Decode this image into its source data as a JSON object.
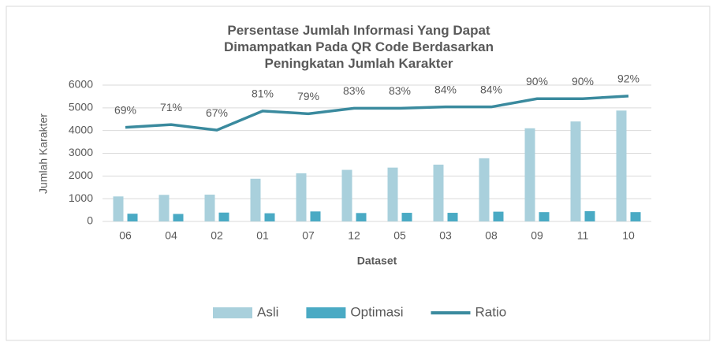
{
  "chart_data": {
    "type": "bar",
    "title": "Persentase Jumlah Informasi Yang Dapat Dimampatkan Pada QR Code Berdasarkan Peningkatan Jumlah Karakter",
    "x_label": "Dataset",
    "y_label": "Jumlah Karakter",
    "categories": [
      "06",
      "04",
      "02",
      "01",
      "07",
      "12",
      "05",
      "03",
      "08",
      "09",
      "11",
      "10"
    ],
    "series": [
      {
        "name": "Asli",
        "type": "bar",
        "color": "#a9d0dc",
        "values": [
          1100,
          1170,
          1180,
          1880,
          2120,
          2270,
          2370,
          2500,
          2780,
          4100,
          4400,
          4880
        ]
      },
      {
        "name": "Optimasi",
        "type": "bar",
        "color": "#4aaac4",
        "values": [
          340,
          330,
          390,
          360,
          440,
          370,
          380,
          380,
          430,
          410,
          450,
          410
        ]
      },
      {
        "name": "Ratio",
        "type": "line",
        "axis": "y2",
        "color": "#3a8a9e",
        "values": [
          69,
          71,
          67,
          81,
          79,
          83,
          83,
          84,
          84,
          90,
          90,
          92
        ],
        "value_labels": [
          "69%",
          "71%",
          "67%",
          "81%",
          "79%",
          "83%",
          "83%",
          "84%",
          "84%",
          "90%",
          "90%",
          "92%"
        ]
      }
    ],
    "ylim": [
      0,
      6000
    ],
    "yticks": [
      0,
      1000,
      2000,
      3000,
      4000,
      5000,
      6000
    ],
    "y2lim": [
      0,
      100
    ],
    "grid": true,
    "legend": "bottom"
  }
}
